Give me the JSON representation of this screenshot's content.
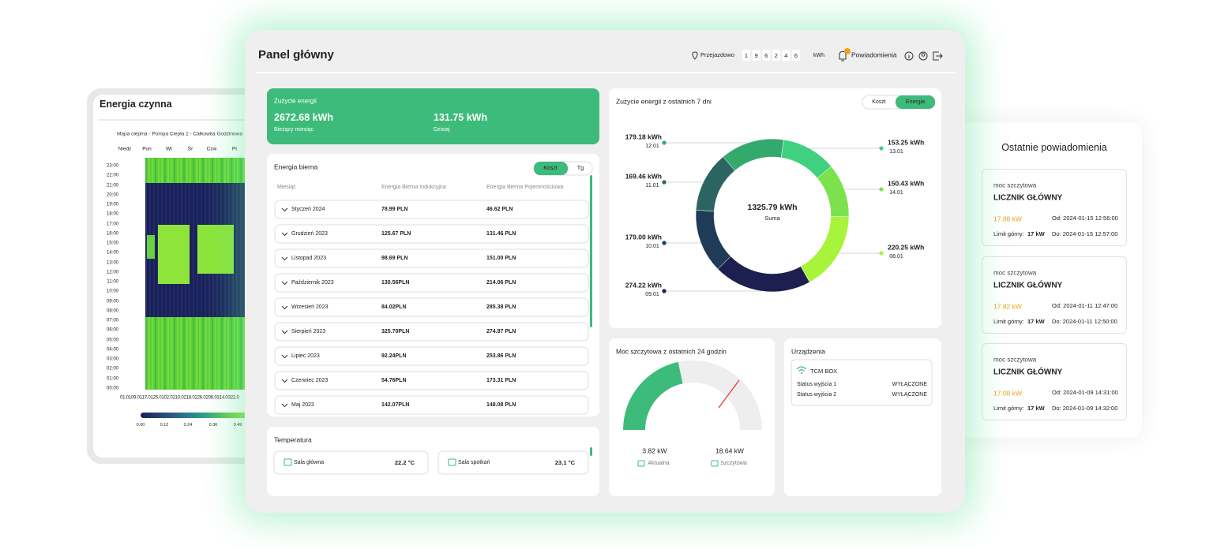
{
  "left_card": {
    "title": "Energia czynna",
    "heatmap_title": "Mapa cieplna - Pompa Ciepła 2 - Całkowita Godzinowa",
    "days": [
      "Niedz",
      "Pon",
      "Wt",
      "Śr",
      "Czw",
      "Pt"
    ],
    "hours": [
      "23:00",
      "22:00",
      "21:00",
      "20:00",
      "19:00",
      "18:00",
      "17:00",
      "16:00",
      "15:00",
      "14:00",
      "13:00",
      "12:00",
      "11:00",
      "10:00",
      "09:00",
      "08:00",
      "07:00",
      "06:00",
      "05:00",
      "04:00",
      "03:00",
      "02:00",
      "01:00",
      "00:00"
    ],
    "dates": "01.0109.0117.0125.0102.0210.0218.0226.0206.0314.0322.0",
    "colorbar_ticks": [
      "0.00",
      "0.12",
      "0.24",
      "0.36",
      "0.49"
    ]
  },
  "header": {
    "title": "Panel główny",
    "location": "Przejazdowo",
    "meter_digits": [
      "1",
      "9",
      "6",
      "2",
      "4",
      "6"
    ],
    "meter_unit": "kWh",
    "notifications": "Powiadomienia"
  },
  "energy_usage": {
    "title": "Zużycie energii",
    "month_value": "2672.68 kWh",
    "month_label": "Bieżący miesiąc",
    "today_value": "131.75 kWh",
    "today_label": "Dzisiaj"
  },
  "reactive": {
    "title": "Energia bierna",
    "toggle": [
      "Koszt",
      "Tg"
    ],
    "columns": [
      "Miesiąc",
      "Energia Bierna Indukcyjna",
      "Energia Bierna Pojemnościowa"
    ],
    "rows": [
      [
        "Styczeń 2024",
        "78.99 PLN",
        "46.62 PLN"
      ],
      [
        "Grudzień 2023",
        "125.67 PLN",
        "131.46 PLN"
      ],
      [
        "Listopad 2023",
        "98.69 PLN",
        "151.00 PLN"
      ],
      [
        "Październik 2023",
        "130.56PLN",
        "214.06 PLN"
      ],
      [
        "Wrzesień 2023",
        "84.02PLN",
        "285.38 PLN"
      ],
      [
        "Sierpień 2023",
        "325.70PLN",
        "274.87 PLN"
      ],
      [
        "Lipiec 2023",
        "92.24PLN",
        "253.86 PLN"
      ],
      [
        "Czerwiec 2023",
        "54.76PLN",
        "173.31 PLN"
      ],
      [
        "Maj 2023",
        "142.07PLN",
        "148.08 PLN"
      ]
    ]
  },
  "temperature": {
    "title": "Temperatura",
    "rooms": [
      {
        "name": "Sala główna",
        "value": "22.2 °C"
      },
      {
        "name": "Sala spotkań",
        "value": "23.1 °C"
      }
    ]
  },
  "donut": {
    "title": "Zużycie energii z ostatnich 7 dni",
    "toggle": [
      "Koszt",
      "Energia"
    ],
    "center_value": "1325.79 kWh",
    "center_label": "Suma",
    "categories": [
      "12.01",
      "13.01",
      "14.01",
      "08.01",
      "09.01",
      "10.01",
      "11.01"
    ],
    "values": [
      179.18,
      153.25,
      150.43,
      220.25,
      274.22,
      179.0,
      169.46
    ],
    "value_labels": [
      "179.18 kWh",
      "153.25 kWh",
      "150.43 kWh",
      "220.25 kWh",
      "274.22 kWh",
      "179.00 kWh",
      "169.46 kWh"
    ],
    "colors": [
      "#34a96e",
      "#3fd17f",
      "#7be24d",
      "#a8f43a",
      "#1c1f4f",
      "#1f3b57",
      "#2a6561"
    ]
  },
  "peak": {
    "title": "Moc szczytowa z ostatnich 24 godzin",
    "current": "3.82 kW",
    "current_label": "Aktualna",
    "peak": "18.64 kW",
    "peak_label": "Szczytowa"
  },
  "devices": {
    "title": "Urządzenia",
    "name": "TCM BOX",
    "statuses": [
      {
        "label": "Status wyjścia 1",
        "value": "WYŁĄCZONE"
      },
      {
        "label": "Status wyjścia 2",
        "value": "WYŁĄCZONE"
      }
    ]
  },
  "notifications": {
    "title": "Ostatnie powiadomienia",
    "items": [
      {
        "type": "moc szczytowa",
        "meter": "LICZNIK GŁÓWNY",
        "value": "17.88 kW",
        "from": "Od: 2024-01-15 12:56:00",
        "limit_label": "Limit górny:",
        "limit": "17 kW",
        "to": "Do: 2024-01-15 12:57:00"
      },
      {
        "type": "moc szczytowa",
        "meter": "LICZNIK GŁÓWNY",
        "value": "17.82 kW",
        "from": "Od: 2024-01-11 12:47:00",
        "limit_label": "Limit górny:",
        "limit": "17 kW",
        "to": "Do: 2024-01-11 12:50:00"
      },
      {
        "type": "moc szczytowa",
        "meter": "LICZNIK GŁÓWNY",
        "value": "17.08 kW",
        "from": "Od: 2024-01-09 14:31:00",
        "limit_label": "Limit górny:",
        "limit": "17 kW",
        "to": "Do: 2024-01-09 14:32:00"
      }
    ]
  }
}
